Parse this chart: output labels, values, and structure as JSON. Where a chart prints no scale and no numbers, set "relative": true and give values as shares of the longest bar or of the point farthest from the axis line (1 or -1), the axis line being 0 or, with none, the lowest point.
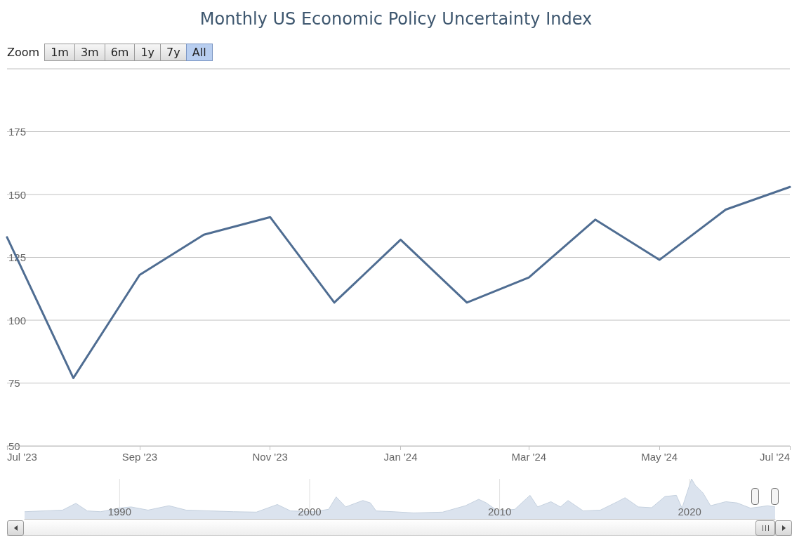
{
  "chart_data": [
    {
      "type": "line",
      "title": "Monthly US Economic Policy Uncertainty Index",
      "annotations": [
        "Zoom",
        "1m",
        "3m",
        "6m",
        "1y",
        "7y",
        "All"
      ],
      "x": [
        "2023-07",
        "2023-08",
        "2023-09",
        "2023-10",
        "2023-11",
        "2023-12",
        "2024-01",
        "2024-02",
        "2024-03",
        "2024-04",
        "2024-05",
        "2024-06",
        "2024-07"
      ],
      "series": [
        {
          "color": "#4f6d92",
          "values": [
            133,
            77,
            118,
            134,
            141,
            107,
            132,
            107,
            117,
            140,
            124,
            144,
            153
          ]
        }
      ],
      "xlim": [
        "2023-07",
        "2024-07"
      ],
      "xticks": [
        {
          "value": "2023-07",
          "label": "Jul '23"
        },
        {
          "value": "2023-09",
          "label": "Sep '23"
        },
        {
          "value": "2023-11",
          "label": "Nov '23"
        },
        {
          "value": "2024-01",
          "label": "Jan '24"
        },
        {
          "value": "2024-03",
          "label": "Mar '24"
        },
        {
          "value": "2024-05",
          "label": "May '24"
        },
        {
          "value": "2024-07",
          "label": "Jul '24"
        }
      ],
      "ylim": [
        50,
        200
      ],
      "yticks": [
        50,
        75,
        100,
        125,
        150,
        175,
        {
          "value": 200,
          "label": null
        }
      ],
      "grid": "y",
      "marker": "none",
      "line_style": "solid"
    },
    {
      "type": "area",
      "relative": true,
      "grid": "x",
      "x": [
        1985.0,
        1986.0,
        1987.0,
        1987.7,
        1988.3,
        1989.0,
        1990.0,
        1990.6,
        1991.5,
        1992.6,
        1993.5,
        1994.8,
        1996.0,
        1997.2,
        1998.3,
        1999.0,
        2000.2,
        2001.0,
        2001.4,
        2001.9,
        2002.8,
        2003.2,
        2003.5,
        2004.4,
        2005.5,
        2007.0,
        2008.2,
        2008.9,
        2009.3,
        2009.9,
        2010.8,
        2011.6,
        2012.0,
        2012.7,
        2013.2,
        2013.6,
        2014.4,
        2015.3,
        2016.2,
        2016.6,
        2017.3,
        2018.0,
        2018.7,
        2019.3,
        2019.6,
        2020.1,
        2020.3,
        2020.7,
        2021.1,
        2021.9,
        2022.5,
        2023.2,
        2023.7,
        2024.1,
        2024.5
      ],
      "series": [
        {
          "color": "#dbe3ee",
          "values": [
            0.18,
            0.2,
            0.22,
            0.39,
            0.2,
            0.18,
            0.27,
            0.3,
            0.22,
            0.33,
            0.22,
            0.2,
            0.18,
            0.17,
            0.36,
            0.2,
            0.18,
            0.24,
            0.55,
            0.3,
            0.46,
            0.4,
            0.2,
            0.18,
            0.15,
            0.17,
            0.33,
            0.49,
            0.4,
            0.2,
            0.24,
            0.59,
            0.3,
            0.43,
            0.3,
            0.46,
            0.2,
            0.22,
            0.43,
            0.53,
            0.3,
            0.28,
            0.56,
            0.59,
            0.27,
            1.0,
            0.84,
            0.65,
            0.33,
            0.43,
            0.4,
            0.27,
            0.3,
            0.33,
            0.3
          ]
        }
      ],
      "xlim": [
        1985,
        2024.5
      ],
      "xticks": [
        1990,
        2000,
        2010,
        2020
      ]
    }
  ]
}
